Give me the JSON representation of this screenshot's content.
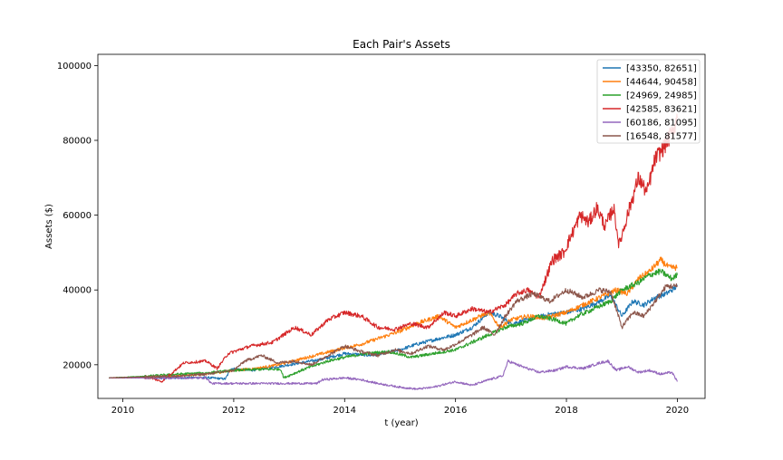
{
  "chart_data": {
    "type": "line",
    "title": "Each Pair's Assets",
    "xlabel": "t (year)",
    "ylabel": "Assets ($)",
    "xlim": [
      2009.55,
      2020.5
    ],
    "ylim": [
      11000,
      103000
    ],
    "x_ticks": [
      2010,
      2012,
      2014,
      2016,
      2018,
      2020
    ],
    "x_tick_labels": [
      "2010",
      "2012",
      "2014",
      "2016",
      "2018",
      "2020"
    ],
    "y_ticks": [
      20000,
      40000,
      60000,
      80000,
      100000
    ],
    "y_tick_labels": [
      "20000",
      "40000",
      "60000",
      "80000",
      "100000"
    ],
    "grid": false,
    "legend_position": "top-right",
    "series": [
      {
        "name": "[43350, 82651]",
        "color": "#1f77b4",
        "points": [
          [
            2009.75,
            16500
          ],
          [
            2010.5,
            16500
          ],
          [
            2011.0,
            16500
          ],
          [
            2011.5,
            16600
          ],
          [
            2011.85,
            16200
          ],
          [
            2011.95,
            19000
          ],
          [
            2012.3,
            18500
          ],
          [
            2012.8,
            19500
          ],
          [
            2013.2,
            20500
          ],
          [
            2013.6,
            21500
          ],
          [
            2014.0,
            23000
          ],
          [
            2014.5,
            22500
          ],
          [
            2015.0,
            24000
          ],
          [
            2015.3,
            25500
          ],
          [
            2015.7,
            27000
          ],
          [
            2016.0,
            28000
          ],
          [
            2016.3,
            30000
          ],
          [
            2016.6,
            34000
          ],
          [
            2016.8,
            33000
          ],
          [
            2017.0,
            31000
          ],
          [
            2017.3,
            32000
          ],
          [
            2017.7,
            33500
          ],
          [
            2018.0,
            34000
          ],
          [
            2018.3,
            35000
          ],
          [
            2018.6,
            37000
          ],
          [
            2018.8,
            38500
          ],
          [
            2019.0,
            33000
          ],
          [
            2019.2,
            37000
          ],
          [
            2019.4,
            36000
          ],
          [
            2019.6,
            38000
          ],
          [
            2019.8,
            39000
          ],
          [
            2020.0,
            41000
          ]
        ]
      },
      {
        "name": "[44644, 90458]",
        "color": "#ff7f0e",
        "points": [
          [
            2009.75,
            16500
          ],
          [
            2010.5,
            16800
          ],
          [
            2011.0,
            17000
          ],
          [
            2011.5,
            17500
          ],
          [
            2012.0,
            18500
          ],
          [
            2012.4,
            19000
          ],
          [
            2012.8,
            20000
          ],
          [
            2013.2,
            21500
          ],
          [
            2013.6,
            23000
          ],
          [
            2014.0,
            24500
          ],
          [
            2014.3,
            25500
          ],
          [
            2014.6,
            27000
          ],
          [
            2015.0,
            29000
          ],
          [
            2015.3,
            31000
          ],
          [
            2015.7,
            33000
          ],
          [
            2016.0,
            30000
          ],
          [
            2016.3,
            32000
          ],
          [
            2016.6,
            34000
          ],
          [
            2016.8,
            30000
          ],
          [
            2017.0,
            32000
          ],
          [
            2017.3,
            33000
          ],
          [
            2017.6,
            32500
          ],
          [
            2018.0,
            34000
          ],
          [
            2018.3,
            36000
          ],
          [
            2018.6,
            38000
          ],
          [
            2018.9,
            40000
          ],
          [
            2019.1,
            39000
          ],
          [
            2019.3,
            43000
          ],
          [
            2019.5,
            45000
          ],
          [
            2019.7,
            48000
          ],
          [
            2019.85,
            46000
          ],
          [
            2020.0,
            46000
          ]
        ]
      },
      {
        "name": "[24969, 24985]",
        "color": "#2ca02c",
        "points": [
          [
            2009.75,
            16500
          ],
          [
            2010.5,
            17000
          ],
          [
            2011.0,
            17500
          ],
          [
            2011.5,
            17800
          ],
          [
            2012.0,
            18500
          ],
          [
            2012.5,
            18800
          ],
          [
            2012.85,
            18800
          ],
          [
            2012.9,
            16500
          ],
          [
            2013.3,
            19000
          ],
          [
            2013.7,
            21000
          ],
          [
            2014.0,
            22000
          ],
          [
            2014.4,
            23000
          ],
          [
            2014.8,
            23500
          ],
          [
            2015.2,
            22000
          ],
          [
            2015.6,
            23000
          ],
          [
            2016.0,
            24000
          ],
          [
            2016.3,
            26000
          ],
          [
            2016.6,
            28000
          ],
          [
            2016.9,
            30000
          ],
          [
            2017.2,
            31000
          ],
          [
            2017.5,
            33000
          ],
          [
            2017.8,
            32000
          ],
          [
            2018.0,
            31000
          ],
          [
            2018.2,
            33000
          ],
          [
            2018.5,
            35000
          ],
          [
            2018.8,
            37000
          ],
          [
            2019.0,
            40000
          ],
          [
            2019.3,
            42000
          ],
          [
            2019.5,
            44000
          ],
          [
            2019.7,
            45000
          ],
          [
            2019.9,
            43000
          ],
          [
            2020.0,
            44000
          ]
        ]
      },
      {
        "name": "[42585, 83621]",
        "color": "#d62728",
        "points": [
          [
            2009.75,
            16500
          ],
          [
            2010.5,
            16500
          ],
          [
            2010.7,
            15500
          ],
          [
            2010.9,
            18000
          ],
          [
            2011.1,
            20500
          ],
          [
            2011.5,
            21000
          ],
          [
            2011.7,
            19000
          ],
          [
            2011.9,
            23000
          ],
          [
            2012.3,
            25000
          ],
          [
            2012.7,
            26000
          ],
          [
            2012.9,
            28000
          ],
          [
            2013.1,
            30000
          ],
          [
            2013.4,
            28000
          ],
          [
            2013.7,
            32000
          ],
          [
            2014.0,
            34000
          ],
          [
            2014.3,
            33000
          ],
          [
            2014.6,
            30000
          ],
          [
            2014.9,
            29500
          ],
          [
            2015.2,
            31000
          ],
          [
            2015.5,
            30000
          ],
          [
            2015.8,
            34000
          ],
          [
            2016.0,
            33000
          ],
          [
            2016.3,
            35000
          ],
          [
            2016.6,
            34000
          ],
          [
            2016.9,
            36000
          ],
          [
            2017.1,
            39000
          ],
          [
            2017.3,
            40000
          ],
          [
            2017.5,
            38000
          ],
          [
            2017.6,
            42000
          ],
          [
            2017.75,
            48000
          ],
          [
            2017.95,
            50000
          ],
          [
            2018.1,
            55000
          ],
          [
            2018.25,
            60000
          ],
          [
            2018.4,
            58000
          ],
          [
            2018.55,
            62000
          ],
          [
            2018.7,
            57000
          ],
          [
            2018.85,
            62000
          ],
          [
            2018.95,
            52000
          ],
          [
            2019.1,
            60000
          ],
          [
            2019.3,
            70000
          ],
          [
            2019.45,
            66000
          ],
          [
            2019.6,
            75000
          ],
          [
            2019.75,
            78000
          ],
          [
            2019.9,
            82000
          ],
          [
            2020.0,
            86000
          ]
        ]
      },
      {
        "name": "[60186, 81095]",
        "color": "#9467bd",
        "points": [
          [
            2009.75,
            16500
          ],
          [
            2010.5,
            16500
          ],
          [
            2011.0,
            16500
          ],
          [
            2011.5,
            16500
          ],
          [
            2011.6,
            15000
          ],
          [
            2012.0,
            15000
          ],
          [
            2012.5,
            15000
          ],
          [
            2013.0,
            15000
          ],
          [
            2013.5,
            15000
          ],
          [
            2013.6,
            16000
          ],
          [
            2014.0,
            16500
          ],
          [
            2014.3,
            16000
          ],
          [
            2014.6,
            15000
          ],
          [
            2015.0,
            14000
          ],
          [
            2015.3,
            13500
          ],
          [
            2015.6,
            14000
          ],
          [
            2016.0,
            15500
          ],
          [
            2016.3,
            14500
          ],
          [
            2016.6,
            16000
          ],
          [
            2016.85,
            17000
          ],
          [
            2016.95,
            21000
          ],
          [
            2017.2,
            19500
          ],
          [
            2017.5,
            18000
          ],
          [
            2017.8,
            18500
          ],
          [
            2018.0,
            19500
          ],
          [
            2018.3,
            19000
          ],
          [
            2018.6,
            20500
          ],
          [
            2018.75,
            21000
          ],
          [
            2018.9,
            18500
          ],
          [
            2019.1,
            19500
          ],
          [
            2019.3,
            18000
          ],
          [
            2019.5,
            18500
          ],
          [
            2019.7,
            17500
          ],
          [
            2019.9,
            18000
          ],
          [
            2020.0,
            15500
          ]
        ]
      },
      {
        "name": "[16548, 81577]",
        "color": "#8c564b",
        "points": [
          [
            2009.75,
            16500
          ],
          [
            2010.5,
            16800
          ],
          [
            2011.0,
            17000
          ],
          [
            2011.5,
            17500
          ],
          [
            2012.0,
            18500
          ],
          [
            2012.2,
            21000
          ],
          [
            2012.5,
            22500
          ],
          [
            2012.8,
            20500
          ],
          [
            2013.1,
            21000
          ],
          [
            2013.4,
            20000
          ],
          [
            2013.7,
            22500
          ],
          [
            2014.0,
            25000
          ],
          [
            2014.3,
            23500
          ],
          [
            2014.6,
            22500
          ],
          [
            2014.9,
            24000
          ],
          [
            2015.2,
            23000
          ],
          [
            2015.5,
            25000
          ],
          [
            2015.8,
            24000
          ],
          [
            2016.0,
            25500
          ],
          [
            2016.3,
            28000
          ],
          [
            2016.5,
            30000
          ],
          [
            2016.7,
            28000
          ],
          [
            2016.9,
            33000
          ],
          [
            2017.1,
            37000
          ],
          [
            2017.4,
            39000
          ],
          [
            2017.7,
            37000
          ],
          [
            2018.0,
            40000
          ],
          [
            2018.3,
            38000
          ],
          [
            2018.6,
            40000
          ],
          [
            2018.8,
            39500
          ],
          [
            2019.0,
            30000
          ],
          [
            2019.2,
            34000
          ],
          [
            2019.4,
            33000
          ],
          [
            2019.6,
            37000
          ],
          [
            2019.8,
            41000
          ],
          [
            2020.0,
            41000
          ]
        ]
      }
    ]
  }
}
